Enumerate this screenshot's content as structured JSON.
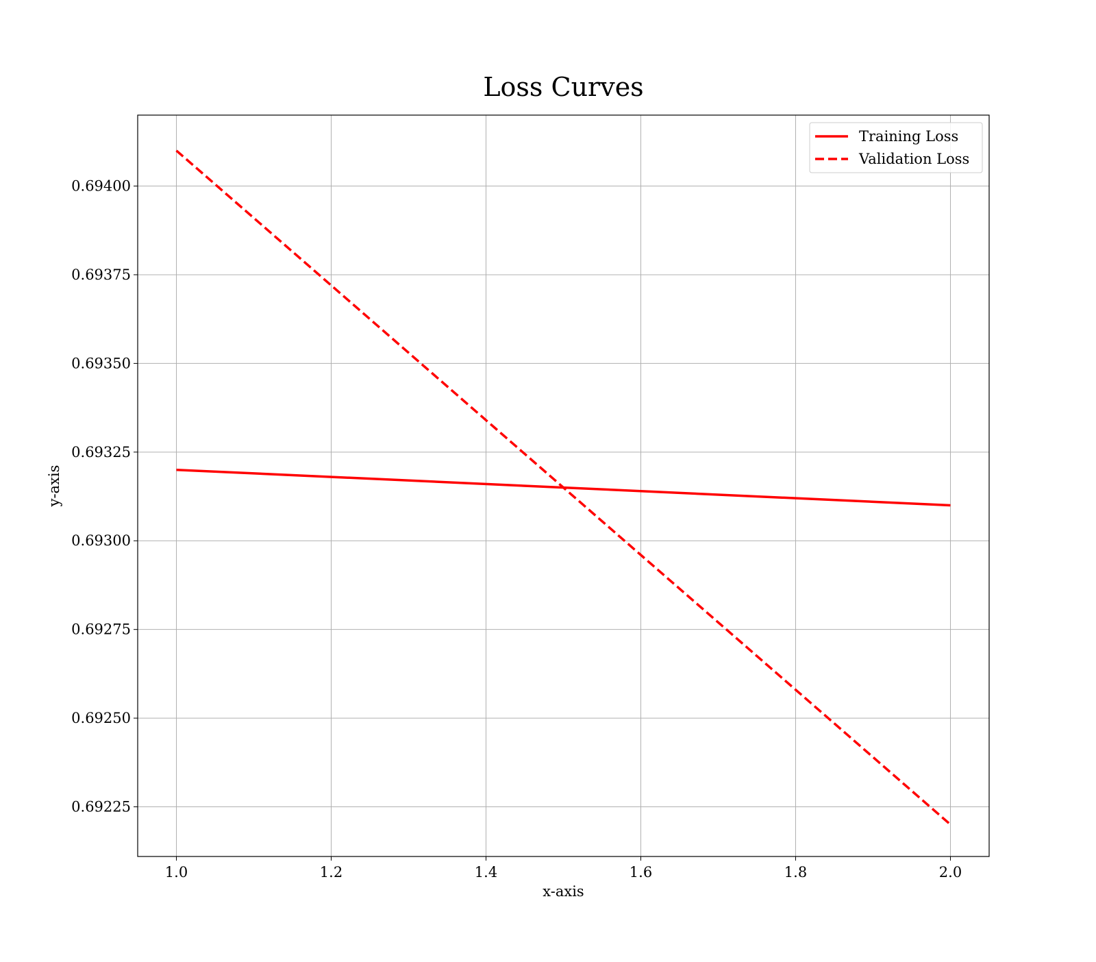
{
  "chart_data": {
    "type": "line",
    "title": "Loss Curves",
    "xlabel": "x-axis",
    "ylabel": "y-axis",
    "x": [
      1.0,
      2.0
    ],
    "series": [
      {
        "name": "Training Loss",
        "values": [
          0.6932,
          0.6931
        ],
        "style": "solid",
        "color": "#ff0000"
      },
      {
        "name": "Validation Loss",
        "values": [
          0.6941,
          0.6922
        ],
        "style": "dashed",
        "color": "#ff0000"
      }
    ],
    "xlim": [
      0.95,
      2.05
    ],
    "ylim": [
      0.69211,
      0.6942
    ],
    "xticks": [
      1.0,
      1.2,
      1.4,
      1.6,
      1.8,
      2.0
    ],
    "xtick_labels": [
      "1.0",
      "1.2",
      "1.4",
      "1.6",
      "1.8",
      "2.0"
    ],
    "yticks": [
      0.69225,
      0.6925,
      0.69275,
      0.693,
      0.69325,
      0.6935,
      0.69375,
      0.694
    ],
    "ytick_labels": [
      "0.69225",
      "0.69250",
      "0.69275",
      "0.69300",
      "0.69325",
      "0.69350",
      "0.69375",
      "0.69400"
    ],
    "grid": true,
    "legend_position": "top-right"
  }
}
